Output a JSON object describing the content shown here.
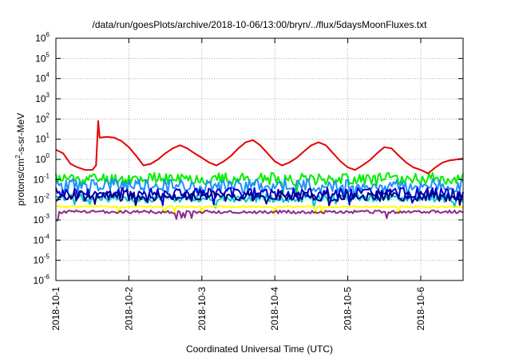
{
  "chart_data": {
    "type": "line",
    "title": "/data/run/goesPlots/archive/2018-10-06/13:00/bryn/../flux/5daysMoonFluxes.txt",
    "xlabel": "Coordinated Universal Time (UTC)",
    "ylabel": {
      "pre": "protons/cm",
      "sup": "2",
      "post": "-s-sr-MeV"
    },
    "yscale": "log",
    "ylim_exp": [
      -6,
      6
    ],
    "ytick_exps": [
      -6,
      -5,
      -4,
      -3,
      -2,
      -1,
      0,
      1,
      2,
      3,
      4,
      5,
      6
    ],
    "ytick_base": "10",
    "xlim_days": [
      0,
      5.58
    ],
    "xticks": [
      {
        "day": 0,
        "label": "2018-10-1"
      },
      {
        "day": 1,
        "label": "2018-10-2"
      },
      {
        "day": 2,
        "label": "2018-10-3"
      },
      {
        "day": 3,
        "label": "2018-10-4"
      },
      {
        "day": 4,
        "label": "2018-10-5"
      },
      {
        "day": 5,
        "label": "2018-10-6"
      }
    ],
    "grid": true,
    "legend": "none",
    "series": [
      {
        "color": "#e60000",
        "x": [
          0,
          0.1,
          0.2,
          0.3,
          0.4,
          0.5,
          0.55,
          0.58,
          0.6,
          0.7,
          0.8,
          0.9,
          1.0,
          1.1,
          1.2,
          1.3,
          1.4,
          1.5,
          1.6,
          1.7,
          1.8,
          1.9,
          2.0,
          2.1,
          2.2,
          2.3,
          2.4,
          2.5,
          2.6,
          2.7,
          2.8,
          2.9,
          3.0,
          3.1,
          3.2,
          3.3,
          3.4,
          3.5,
          3.6,
          3.7,
          3.8,
          3.9,
          4.0,
          4.1,
          4.2,
          4.3,
          4.4,
          4.5,
          4.6,
          4.7,
          4.8,
          4.9,
          5.0,
          5.1,
          5.2,
          5.3,
          5.4,
          5.5,
          5.58
        ],
        "y": [
          3,
          2,
          0.6,
          0.4,
          0.3,
          0.3,
          0.5,
          80,
          12,
          13,
          12,
          8,
          4,
          1.5,
          0.5,
          0.6,
          1,
          2,
          3.5,
          5,
          3.5,
          2,
          1.2,
          0.7,
          0.5,
          0.8,
          1.5,
          3.5,
          7,
          9,
          5,
          2,
          0.8,
          0.5,
          0.7,
          1.2,
          2.5,
          5,
          7,
          5,
          2,
          0.8,
          0.4,
          0.3,
          0.5,
          0.9,
          2,
          4,
          3.5,
          1.5,
          0.7,
          0.4,
          0.3,
          0.2,
          0.4,
          0.7,
          0.9,
          1.0,
          1.1
        ]
      },
      {
        "color": "#00ee00",
        "base": 0.11,
        "amp": 0.3,
        "seed": 11
      },
      {
        "color": "#1e90ff",
        "base": 0.05,
        "amp": 0.35,
        "seed": 23
      },
      {
        "color": "#00c8c8",
        "base": 0.012,
        "amp": 0.2,
        "seed": 37
      },
      {
        "color": "#0000cc",
        "base": 0.02,
        "amp": 0.3,
        "seed": 41
      },
      {
        "color": "#00008b",
        "base": 0.015,
        "amp": 0.25,
        "seed": 53
      },
      {
        "color": "#ffff00",
        "base": 0.0045,
        "amp": 0.04,
        "seed": 61
      },
      {
        "color": "#8b2a8b",
        "base": 0.0025,
        "amp": 0.08,
        "seed": 71
      }
    ]
  }
}
